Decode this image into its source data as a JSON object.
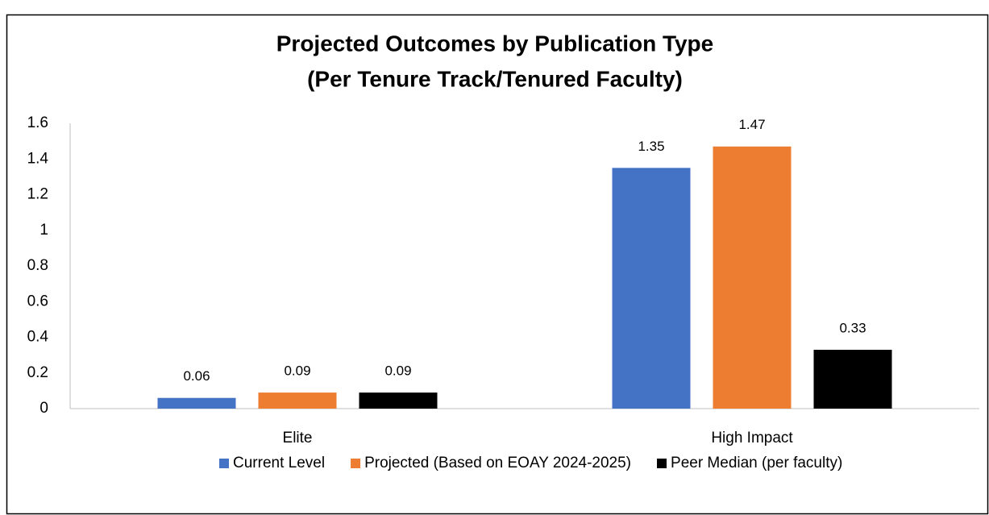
{
  "chart_data": {
    "type": "bar",
    "title": [
      "Projected Outcomes by Publication Type",
      "(Per Tenure Track/Tenured Faculty)"
    ],
    "categories": [
      "Elite",
      "High Impact"
    ],
    "series": [
      {
        "name": "Current Level",
        "color": "#4472c4",
        "values": [
          0.06,
          1.35
        ]
      },
      {
        "name": "Projected (Based on EOAY 2024-2025)",
        "color": "#ed7d31",
        "values": [
          0.09,
          1.47
        ]
      },
      {
        "name": "Peer Median (per faculty)",
        "color": "#000000",
        "values": [
          0.09,
          0.33
        ]
      }
    ],
    "ylim": [
      0,
      1.6
    ],
    "yticks": [
      0,
      0.2,
      0.4,
      0.6,
      0.8,
      1,
      1.2,
      1.4,
      1.6
    ],
    "grid": false,
    "legend": "bottom"
  }
}
